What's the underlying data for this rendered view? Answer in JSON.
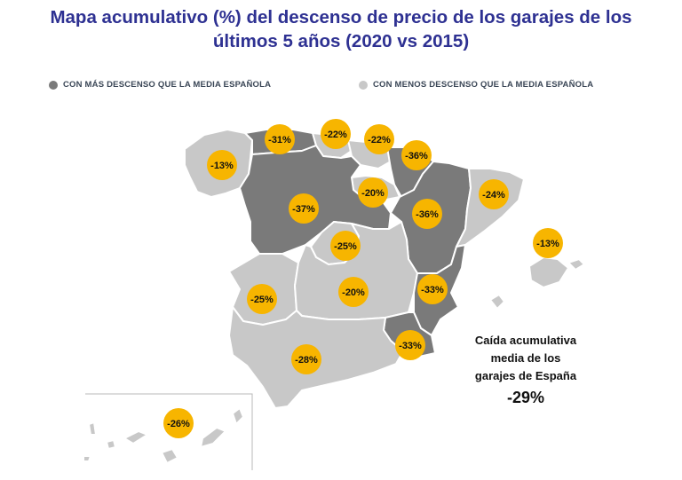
{
  "title": {
    "line1": "Mapa acumulativo (%) del descenso de precio de los garajes de los",
    "line2": "últimos 5 años (2020 vs 2015)"
  },
  "legend": {
    "above": {
      "label": "CON MÁS DESCENSO QUE LA MEDIA ESPAÑOLA",
      "color": "#7a7a7a"
    },
    "below": {
      "label": "CON MENOS DESCENSO QUE LA MEDIA ESPAÑOLA",
      "color": "#c8c8c8"
    }
  },
  "colors": {
    "badge": "#f7b500",
    "dark_region": "#7a7a7a",
    "light_region": "#c8c8c8",
    "border": "#ffffff"
  },
  "regions": [
    {
      "id": "galicia",
      "value": "-13%",
      "group": "below"
    },
    {
      "id": "asturias",
      "value": "-31%",
      "group": "above"
    },
    {
      "id": "cantabria",
      "value": "-22%",
      "group": "below"
    },
    {
      "id": "pais-vasco",
      "value": "-22%",
      "group": "below"
    },
    {
      "id": "navarra",
      "value": "-36%",
      "group": "above"
    },
    {
      "id": "la-rioja",
      "value": "-20%",
      "group": "below"
    },
    {
      "id": "castilla-leon",
      "value": "-37%",
      "group": "above"
    },
    {
      "id": "aragon",
      "value": "-36%",
      "group": "above"
    },
    {
      "id": "cataluna",
      "value": "-24%",
      "group": "below"
    },
    {
      "id": "baleares",
      "value": "-13%",
      "group": "below"
    },
    {
      "id": "madrid",
      "value": "-25%",
      "group": "below"
    },
    {
      "id": "extremadura",
      "value": "-25%",
      "group": "below"
    },
    {
      "id": "castilla-la-mancha",
      "value": "-20%",
      "group": "below"
    },
    {
      "id": "valencia",
      "value": "-33%",
      "group": "above"
    },
    {
      "id": "murcia",
      "value": "-33%",
      "group": "above"
    },
    {
      "id": "andalucia",
      "value": "-28%",
      "group": "below"
    },
    {
      "id": "canarias",
      "value": "-26%",
      "group": "below"
    }
  ],
  "average": {
    "line1": "Caída acumulativa",
    "line2": "media de los",
    "line3": "garajes de España",
    "value": "-29%"
  }
}
